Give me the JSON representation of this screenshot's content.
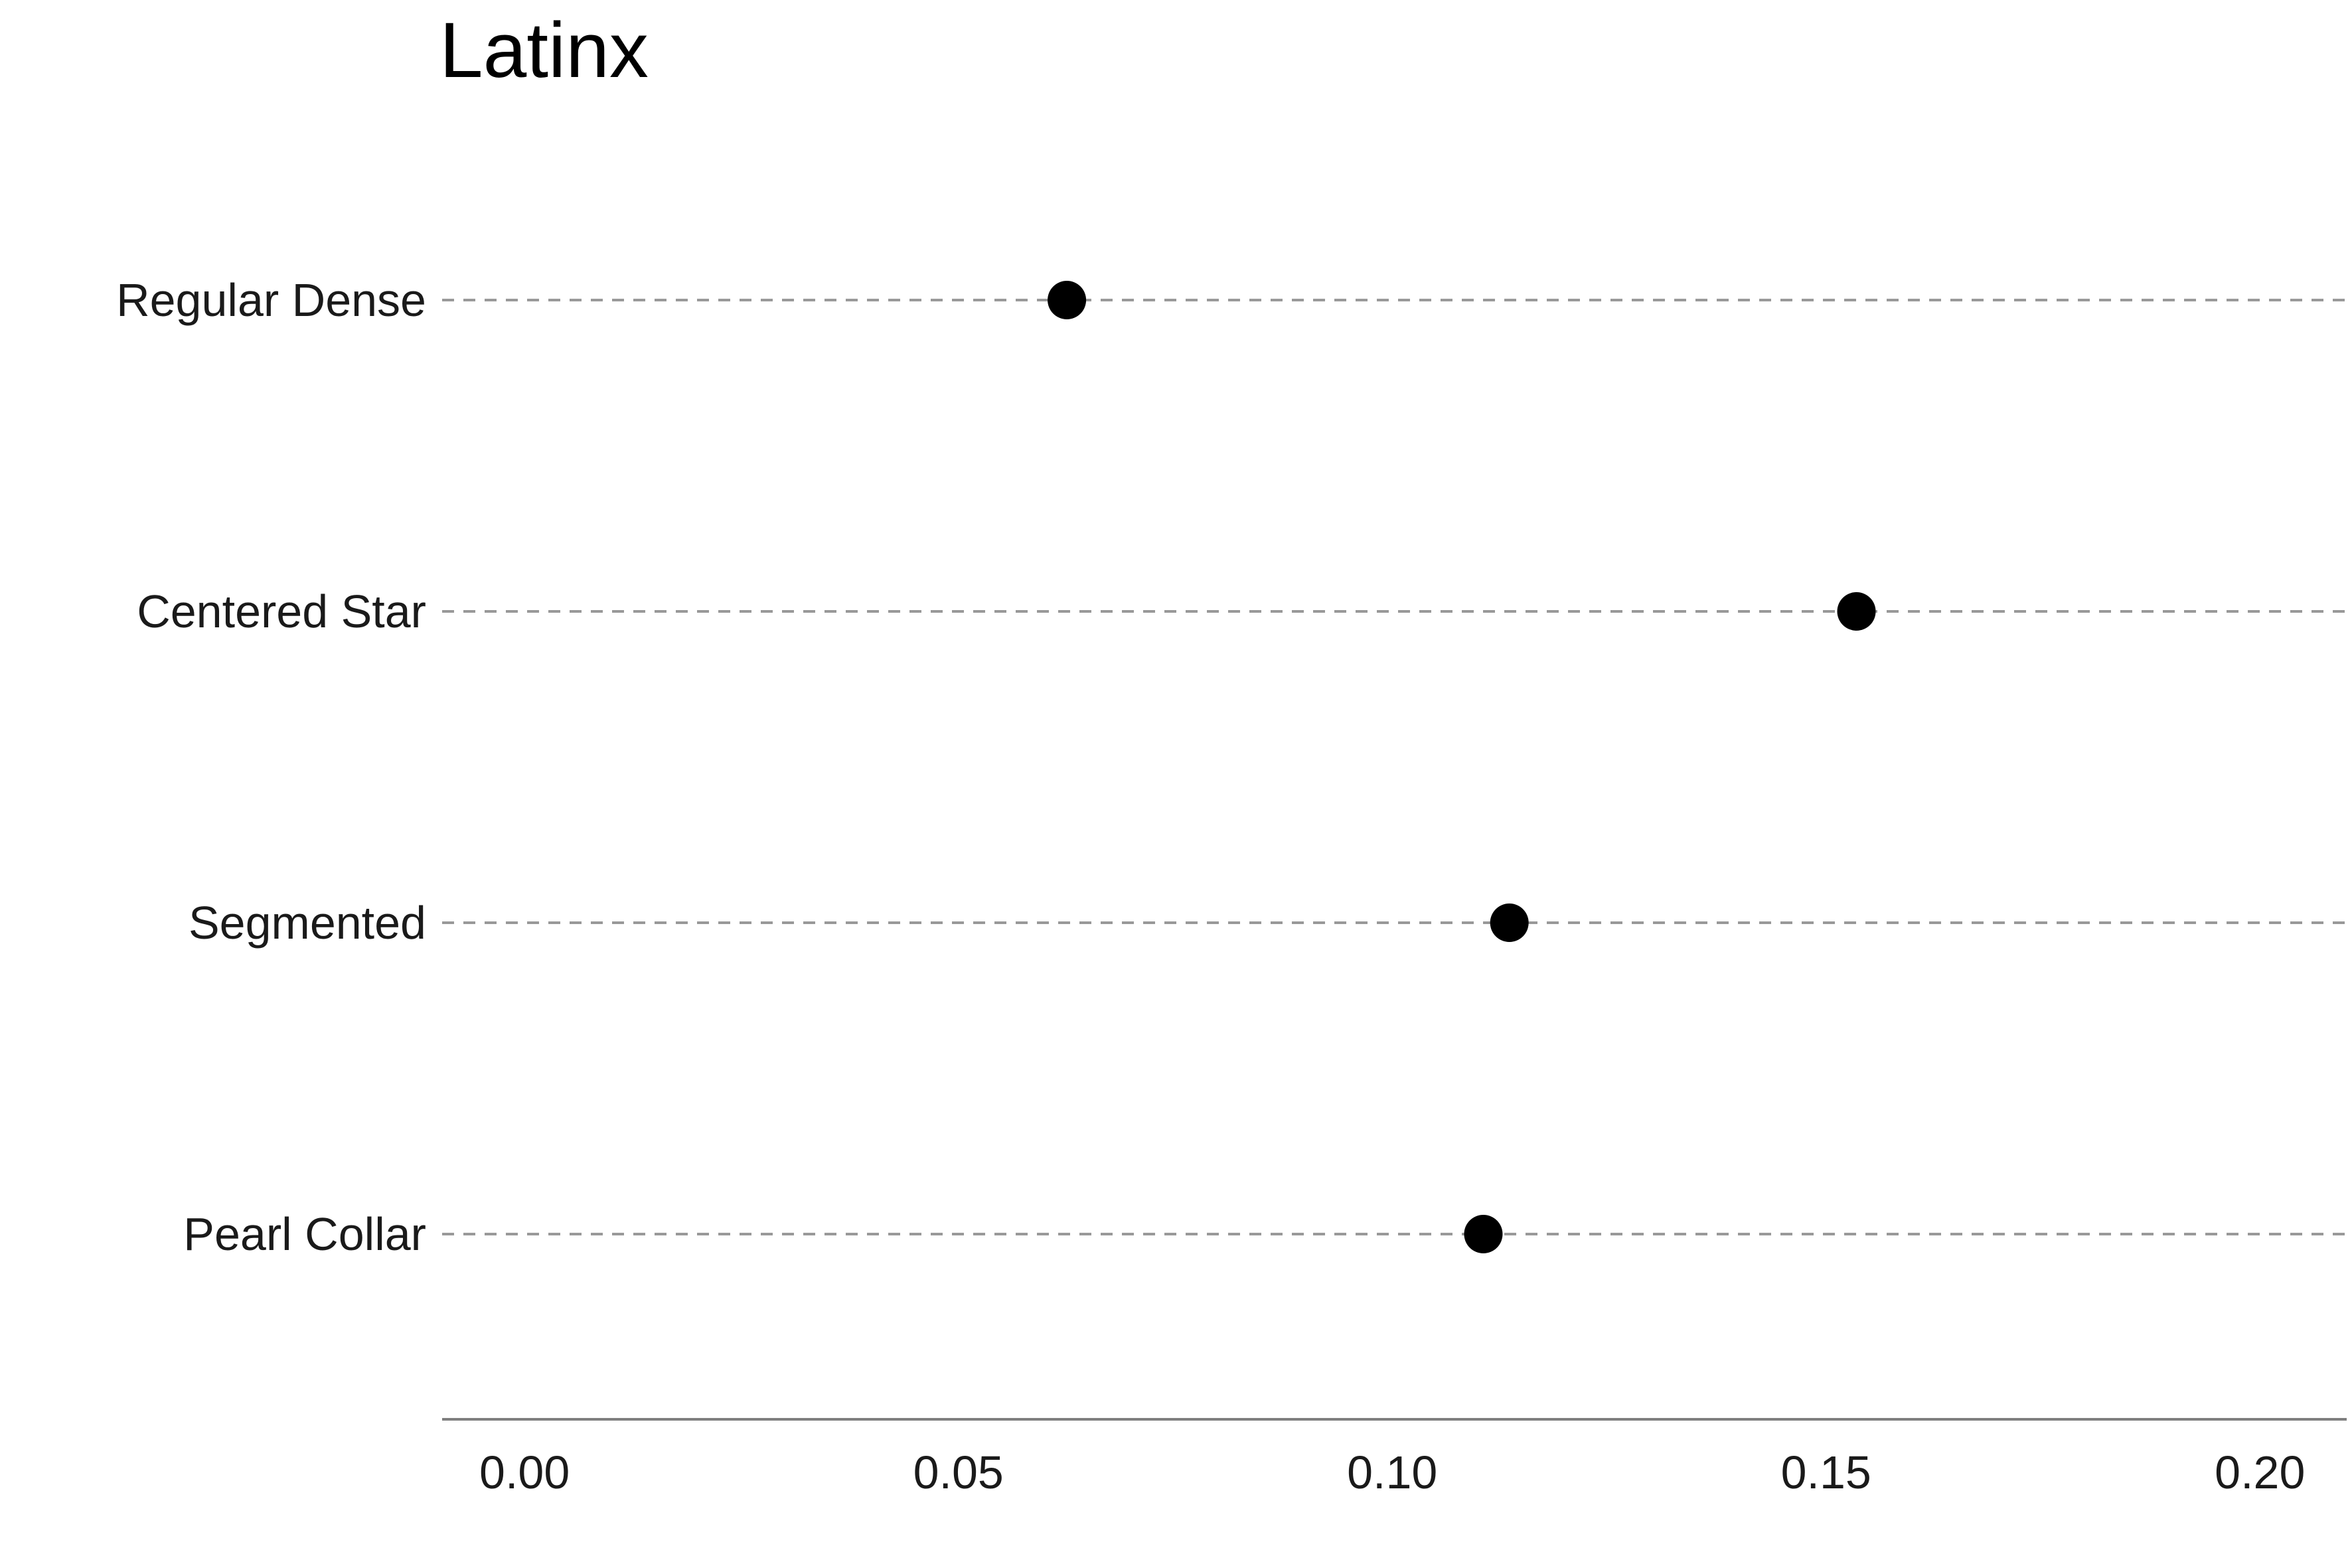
{
  "chart_data": {
    "type": "scatter",
    "title": "Latinx",
    "xlabel": "",
    "ylabel": "",
    "categories": [
      "Regular Dense",
      "Centered Star",
      "Segmented",
      "Pearl Collar"
    ],
    "values": [
      0.0625,
      0.1535,
      0.1135,
      0.1105
    ],
    "xlim": [
      -0.0095,
      0.21
    ],
    "x_ticks": [
      0.0,
      0.05,
      0.1,
      0.15,
      0.2
    ],
    "x_tick_labels": [
      "0.00",
      "0.05",
      "0.10",
      "0.15",
      "0.20"
    ],
    "grid": "horizontal dashed guide lines per category",
    "legend": "none",
    "colors": {
      "point": "#000000",
      "guide": "#999999",
      "axis": "#7f7f7f"
    }
  }
}
